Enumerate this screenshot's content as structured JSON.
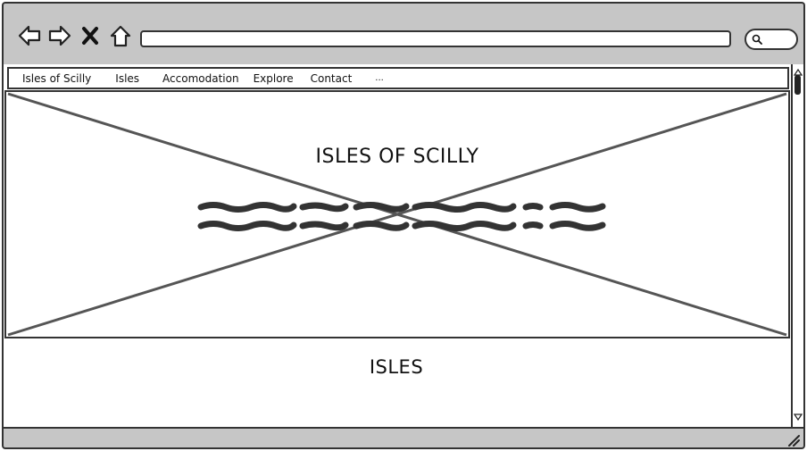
{
  "browser": {
    "icons": [
      "back-arrow-icon",
      "forward-arrow-icon",
      "close-icon",
      "home-icon",
      "search-icon"
    ],
    "address_value": ""
  },
  "menu": {
    "items": [
      {
        "label": "Isles of Scilly"
      },
      {
        "label": "Isles"
      },
      {
        "label": "Accomodation"
      },
      {
        "label": "Explore"
      },
      {
        "label": "Contact"
      },
      {
        "label": "..."
      }
    ]
  },
  "hero": {
    "title": "ISLES OF SCILLY"
  },
  "section": {
    "title": "ISLES"
  },
  "colors": {
    "chrome": "#c6c6c6",
    "stroke": "#333333",
    "background": "#ffffff"
  }
}
